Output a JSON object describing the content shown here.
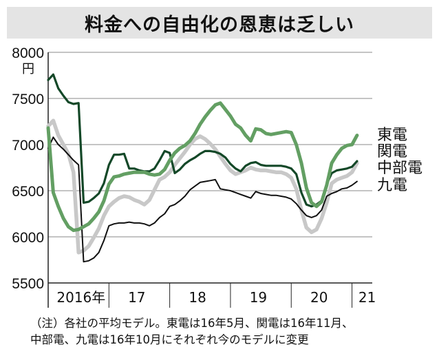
{
  "title": "料金への自由化の恩恵は乏しい",
  "note": {
    "line1": "（注）各社の平均モデル。東電は16年5月、関電は16年11月、",
    "line2": "中部電、九電は16年10月にそれぞれ今のモデルに変更"
  },
  "colors": {
    "東電": "#639f63",
    "関電": "#c8c8c8",
    "中部電": "#144828",
    "九電": "#111111",
    "axis": "#222222",
    "grid": "#888888"
  },
  "chart_data": {
    "type": "line",
    "title": "料金への自由化の恩恵は乏しい",
    "ylabel": "円",
    "ylim": [
      5500,
      8000
    ],
    "yticks": [
      5500,
      6000,
      6500,
      7000,
      7500,
      8000
    ],
    "y_unit": "円",
    "xlim": [
      0,
      64
    ],
    "xticks": [
      {
        "label": "2016年",
        "pos": 6.5
      },
      {
        "label": "17",
        "pos": 17.5
      },
      {
        "label": "18",
        "pos": 29.5
      },
      {
        "label": "19",
        "pos": 41.5
      },
      {
        "label": "20",
        "pos": 53.5
      },
      {
        "label": "21",
        "pos": 63
      }
    ],
    "year_boundaries": [
      12,
      24,
      36,
      48,
      60
    ],
    "x_note": "months since Jan 2016 (0 = Jan 2016)",
    "series": [
      {
        "name": "東電",
        "points": [
          [
            0,
            7180
          ],
          [
            1,
            6480
          ],
          [
            2,
            6330
          ],
          [
            3,
            6200
          ],
          [
            4,
            6110
          ],
          [
            5,
            6070
          ],
          [
            6,
            6080
          ],
          [
            7,
            6110
          ],
          [
            8,
            6140
          ],
          [
            9,
            6200
          ],
          [
            10,
            6270
          ],
          [
            11,
            6390
          ],
          [
            12,
            6570
          ],
          [
            13,
            6650
          ],
          [
            14,
            6660
          ],
          [
            15,
            6680
          ],
          [
            16,
            6690
          ],
          [
            17,
            6700
          ],
          [
            18,
            6700
          ],
          [
            19,
            6700
          ],
          [
            20,
            6680
          ],
          [
            21,
            6670
          ],
          [
            22,
            6680
          ],
          [
            23,
            6730
          ],
          [
            24,
            6830
          ],
          [
            25,
            6910
          ],
          [
            26,
            6960
          ],
          [
            27,
            6990
          ],
          [
            28,
            7040
          ],
          [
            29,
            7120
          ],
          [
            30,
            7220
          ],
          [
            31,
            7300
          ],
          [
            32,
            7370
          ],
          [
            33,
            7430
          ],
          [
            34,
            7450
          ],
          [
            35,
            7380
          ],
          [
            36,
            7310
          ],
          [
            37,
            7220
          ],
          [
            38,
            7180
          ],
          [
            39,
            7100
          ],
          [
            40,
            7040
          ],
          [
            41,
            7170
          ],
          [
            42,
            7160
          ],
          [
            43,
            7120
          ],
          [
            44,
            7110
          ],
          [
            45,
            7120
          ],
          [
            46,
            7130
          ],
          [
            47,
            7140
          ],
          [
            48,
            7130
          ],
          [
            49,
            7000
          ],
          [
            50,
            6800
          ],
          [
            51,
            6530
          ],
          [
            52,
            6370
          ],
          [
            53,
            6330
          ],
          [
            54,
            6380
          ],
          [
            55,
            6560
          ],
          [
            56,
            6800
          ],
          [
            57,
            6890
          ],
          [
            58,
            6960
          ],
          [
            59,
            6990
          ],
          [
            60,
            7000
          ],
          [
            61,
            7100
          ]
        ]
      },
      {
        "name": "関電",
        "points": [
          [
            0,
            7200
          ],
          [
            1,
            7260
          ],
          [
            2,
            7100
          ],
          [
            3,
            7000
          ],
          [
            4,
            6900
          ],
          [
            5,
            6700
          ],
          [
            6,
            5830
          ],
          [
            7,
            5850
          ],
          [
            8,
            5900
          ],
          [
            9,
            5990
          ],
          [
            10,
            6090
          ],
          [
            11,
            6230
          ],
          [
            12,
            6330
          ],
          [
            13,
            6380
          ],
          [
            14,
            6420
          ],
          [
            15,
            6440
          ],
          [
            16,
            6430
          ],
          [
            17,
            6400
          ],
          [
            18,
            6380
          ],
          [
            19,
            6350
          ],
          [
            20,
            6400
          ],
          [
            21,
            6510
          ],
          [
            22,
            6620
          ],
          [
            23,
            6650
          ],
          [
            24,
            6700
          ],
          [
            25,
            6780
          ],
          [
            26,
            6850
          ],
          [
            27,
            6920
          ],
          [
            28,
            7000
          ],
          [
            29,
            7060
          ],
          [
            30,
            7090
          ],
          [
            31,
            7060
          ],
          [
            32,
            7010
          ],
          [
            33,
            6950
          ],
          [
            34,
            6870
          ],
          [
            35,
            6790
          ],
          [
            36,
            6720
          ],
          [
            37,
            6680
          ],
          [
            38,
            6700
          ],
          [
            39,
            6720
          ],
          [
            40,
            6750
          ],
          [
            41,
            6730
          ],
          [
            42,
            6720
          ],
          [
            43,
            6720
          ],
          [
            44,
            6710
          ],
          [
            45,
            6700
          ],
          [
            46,
            6700
          ],
          [
            47,
            6680
          ],
          [
            48,
            6640
          ],
          [
            49,
            6520
          ],
          [
            50,
            6290
          ],
          [
            51,
            6100
          ],
          [
            52,
            6050
          ],
          [
            53,
            6080
          ],
          [
            54,
            6200
          ],
          [
            55,
            6370
          ],
          [
            56,
            6580
          ],
          [
            57,
            6620
          ],
          [
            58,
            6640
          ],
          [
            59,
            6660
          ],
          [
            60,
            6700
          ],
          [
            61,
            6800
          ]
        ]
      },
      {
        "name": "中部電",
        "points": [
          [
            0,
            7700
          ],
          [
            1,
            7760
          ],
          [
            2,
            7610
          ],
          [
            3,
            7530
          ],
          [
            4,
            7460
          ],
          [
            5,
            7440
          ],
          [
            6,
            7450
          ],
          [
            7,
            6370
          ],
          [
            8,
            6380
          ],
          [
            9,
            6420
          ],
          [
            10,
            6470
          ],
          [
            11,
            6580
          ],
          [
            12,
            6780
          ],
          [
            13,
            6890
          ],
          [
            14,
            6890
          ],
          [
            15,
            6900
          ],
          [
            16,
            6740
          ],
          [
            17,
            6740
          ],
          [
            18,
            6720
          ],
          [
            19,
            6710
          ],
          [
            20,
            6710
          ],
          [
            21,
            6740
          ],
          [
            22,
            6830
          ],
          [
            23,
            6930
          ],
          [
            24,
            6910
          ],
          [
            25,
            6690
          ],
          [
            26,
            6730
          ],
          [
            27,
            6790
          ],
          [
            28,
            6830
          ],
          [
            29,
            6860
          ],
          [
            30,
            6900
          ],
          [
            31,
            6930
          ],
          [
            32,
            6930
          ],
          [
            33,
            6920
          ],
          [
            34,
            6900
          ],
          [
            35,
            6860
          ],
          [
            36,
            6790
          ],
          [
            37,
            6740
          ],
          [
            38,
            6710
          ],
          [
            39,
            6770
          ],
          [
            40,
            6800
          ],
          [
            41,
            6810
          ],
          [
            42,
            6780
          ],
          [
            43,
            6770
          ],
          [
            44,
            6770
          ],
          [
            45,
            6770
          ],
          [
            46,
            6770
          ],
          [
            47,
            6760
          ],
          [
            48,
            6740
          ],
          [
            49,
            6680
          ],
          [
            50,
            6480
          ],
          [
            51,
            6350
          ],
          [
            52,
            6330
          ],
          [
            53,
            6350
          ],
          [
            54,
            6390
          ],
          [
            55,
            6570
          ],
          [
            56,
            6690
          ],
          [
            57,
            6720
          ],
          [
            58,
            6730
          ],
          [
            59,
            6740
          ],
          [
            60,
            6760
          ],
          [
            61,
            6820
          ]
        ]
      },
      {
        "name": "九電",
        "points": [
          [
            0,
            6960
          ],
          [
            1,
            7080
          ],
          [
            2,
            7000
          ],
          [
            3,
            6950
          ],
          [
            4,
            6890
          ],
          [
            5,
            6830
          ],
          [
            6,
            6780
          ],
          [
            7,
            5730
          ],
          [
            8,
            5740
          ],
          [
            9,
            5770
          ],
          [
            10,
            5830
          ],
          [
            11,
            5960
          ],
          [
            12,
            6120
          ],
          [
            13,
            6140
          ],
          [
            14,
            6150
          ],
          [
            15,
            6150
          ],
          [
            16,
            6160
          ],
          [
            17,
            6150
          ],
          [
            18,
            6150
          ],
          [
            19,
            6140
          ],
          [
            20,
            6120
          ],
          [
            21,
            6150
          ],
          [
            22,
            6210
          ],
          [
            23,
            6250
          ],
          [
            24,
            6330
          ],
          [
            25,
            6350
          ],
          [
            26,
            6390
          ],
          [
            27,
            6440
          ],
          [
            28,
            6510
          ],
          [
            29,
            6550
          ],
          [
            30,
            6590
          ],
          [
            31,
            6600
          ],
          [
            32,
            6610
          ],
          [
            33,
            6620
          ],
          [
            34,
            6520
          ],
          [
            35,
            6510
          ],
          [
            36,
            6500
          ],
          [
            37,
            6480
          ],
          [
            38,
            6460
          ],
          [
            39,
            6440
          ],
          [
            40,
            6420
          ],
          [
            41,
            6490
          ],
          [
            42,
            6470
          ],
          [
            43,
            6460
          ],
          [
            44,
            6450
          ],
          [
            45,
            6450
          ],
          [
            46,
            6440
          ],
          [
            47,
            6430
          ],
          [
            48,
            6410
          ],
          [
            49,
            6360
          ],
          [
            50,
            6290
          ],
          [
            51,
            6230
          ],
          [
            52,
            6210
          ],
          [
            53,
            6230
          ],
          [
            54,
            6290
          ],
          [
            55,
            6440
          ],
          [
            56,
            6470
          ],
          [
            57,
            6490
          ],
          [
            58,
            6520
          ],
          [
            59,
            6530
          ],
          [
            60,
            6560
          ],
          [
            61,
            6600
          ]
        ]
      }
    ],
    "legend": {
      "placement": "right",
      "entries": [
        "東電",
        "関電",
        "中部電",
        "九電"
      ]
    }
  }
}
